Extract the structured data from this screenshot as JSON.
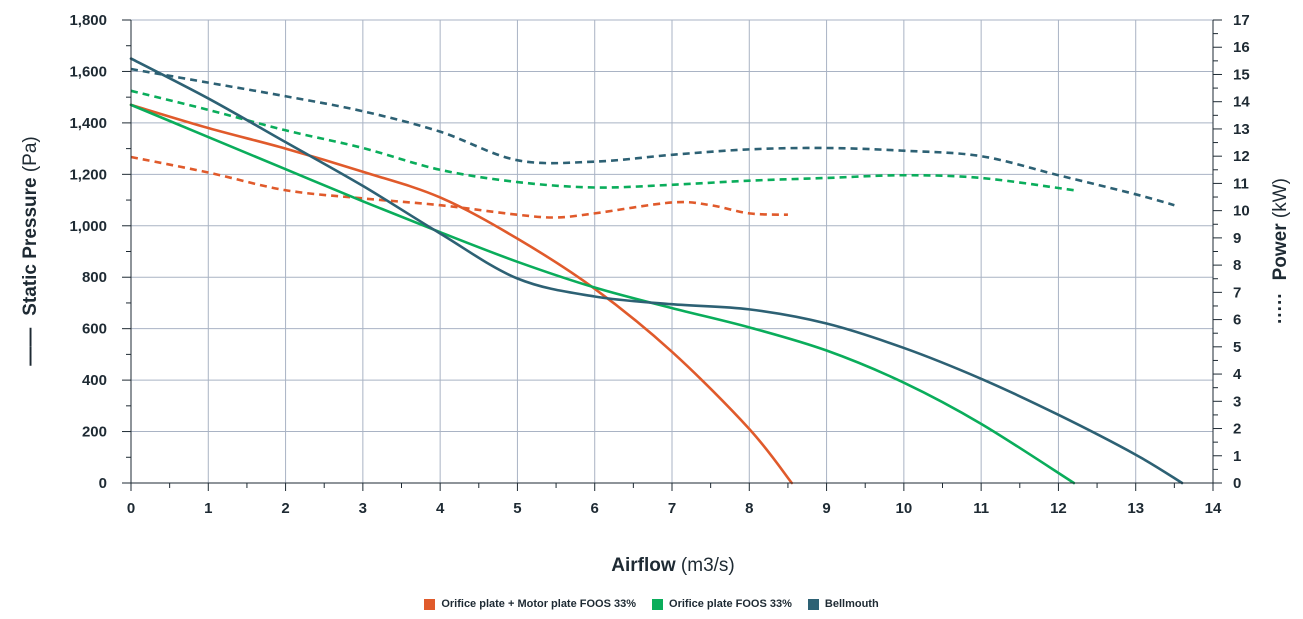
{
  "chart_data": {
    "type": "line",
    "xlabel": {
      "main": "Airflow",
      "unit": " (m3/s)"
    },
    "ylabel_left": {
      "main": "Static Pressure",
      "unit": " (Pa)",
      "marker": "——"
    },
    "ylabel_right": {
      "main": "Power",
      "unit": " (kW)",
      "marker": "·····"
    },
    "xlim": [
      0,
      14
    ],
    "ylim_left": [
      0,
      1800
    ],
    "ylim_right": [
      0,
      17
    ],
    "x_ticks": [
      "0",
      "1",
      "2",
      "3",
      "4",
      "5",
      "6",
      "7",
      "8",
      "9",
      "10",
      "11",
      "12",
      "13",
      "14"
    ],
    "y_left_ticks": [
      "0",
      "200",
      "400",
      "600",
      "800",
      "1,000",
      "1,200",
      "1,400",
      "1,600",
      "1,800"
    ],
    "y_right_ticks": [
      "0",
      "1",
      "2",
      "3",
      "4",
      "5",
      "6",
      "7",
      "8",
      "9",
      "10",
      "11",
      "12",
      "13",
      "14",
      "15",
      "16",
      "17"
    ],
    "grid": true,
    "legend_position": "bottom-center",
    "series": [
      {
        "name": "Orifice plate + Motor plate FOOS 33%",
        "color": "#e05a2b",
        "pressure": [
          [
            0,
            1470
          ],
          [
            1,
            1380
          ],
          [
            2,
            1300
          ],
          [
            3,
            1210
          ],
          [
            4,
            1110
          ],
          [
            5,
            950
          ],
          [
            6,
            755
          ],
          [
            7,
            510
          ],
          [
            8,
            210
          ],
          [
            8.55,
            0
          ]
        ],
        "power": [
          [
            0,
            11.97
          ],
          [
            1,
            11.4
          ],
          [
            2,
            10.75
          ],
          [
            3,
            10.45
          ],
          [
            4,
            10.2
          ],
          [
            5,
            9.85
          ],
          [
            5.5,
            9.75
          ],
          [
            6,
            9.9
          ],
          [
            7,
            10.3
          ],
          [
            7.5,
            10.2
          ],
          [
            8,
            9.9
          ],
          [
            8.5,
            9.85
          ]
        ]
      },
      {
        "name": "Orifice plate FOOS 33%",
        "color": "#0aad5b",
        "pressure": [
          [
            0,
            1470
          ],
          [
            1,
            1345
          ],
          [
            2,
            1220
          ],
          [
            3,
            1095
          ],
          [
            4,
            975
          ],
          [
            5,
            860
          ],
          [
            6,
            760
          ],
          [
            7,
            680
          ],
          [
            8,
            605
          ],
          [
            9,
            515
          ],
          [
            10,
            390
          ],
          [
            11,
            230
          ],
          [
            12.2,
            0
          ]
        ],
        "power": [
          [
            0,
            14.4
          ],
          [
            1,
            13.7
          ],
          [
            2,
            12.95
          ],
          [
            3,
            12.3
          ],
          [
            4,
            11.5
          ],
          [
            5,
            11.05
          ],
          [
            6,
            10.85
          ],
          [
            7,
            10.95
          ],
          [
            8,
            11.1
          ],
          [
            9,
            11.2
          ],
          [
            10,
            11.3
          ],
          [
            11,
            11.2
          ],
          [
            12.2,
            10.75
          ]
        ]
      },
      {
        "name": "Bellmouth",
        "color": "#2d6174",
        "pressure": [
          [
            0,
            1650
          ],
          [
            1,
            1495
          ],
          [
            2,
            1325
          ],
          [
            3,
            1155
          ],
          [
            4,
            970
          ],
          [
            5,
            795
          ],
          [
            6,
            725
          ],
          [
            7,
            695
          ],
          [
            8,
            675
          ],
          [
            9,
            620
          ],
          [
            10,
            525
          ],
          [
            11,
            405
          ],
          [
            12,
            265
          ],
          [
            13,
            110
          ],
          [
            13.6,
            0
          ]
        ],
        "power": [
          [
            0,
            15.2
          ],
          [
            1,
            14.7
          ],
          [
            2,
            14.2
          ],
          [
            3,
            13.65
          ],
          [
            4,
            12.9
          ],
          [
            5,
            11.85
          ],
          [
            6,
            11.8
          ],
          [
            7,
            12.05
          ],
          [
            8,
            12.25
          ],
          [
            9,
            12.3
          ],
          [
            10,
            12.2
          ],
          [
            11,
            12.0
          ],
          [
            12,
            11.3
          ],
          [
            13,
            10.6
          ],
          [
            13.5,
            10.2
          ]
        ]
      }
    ]
  }
}
